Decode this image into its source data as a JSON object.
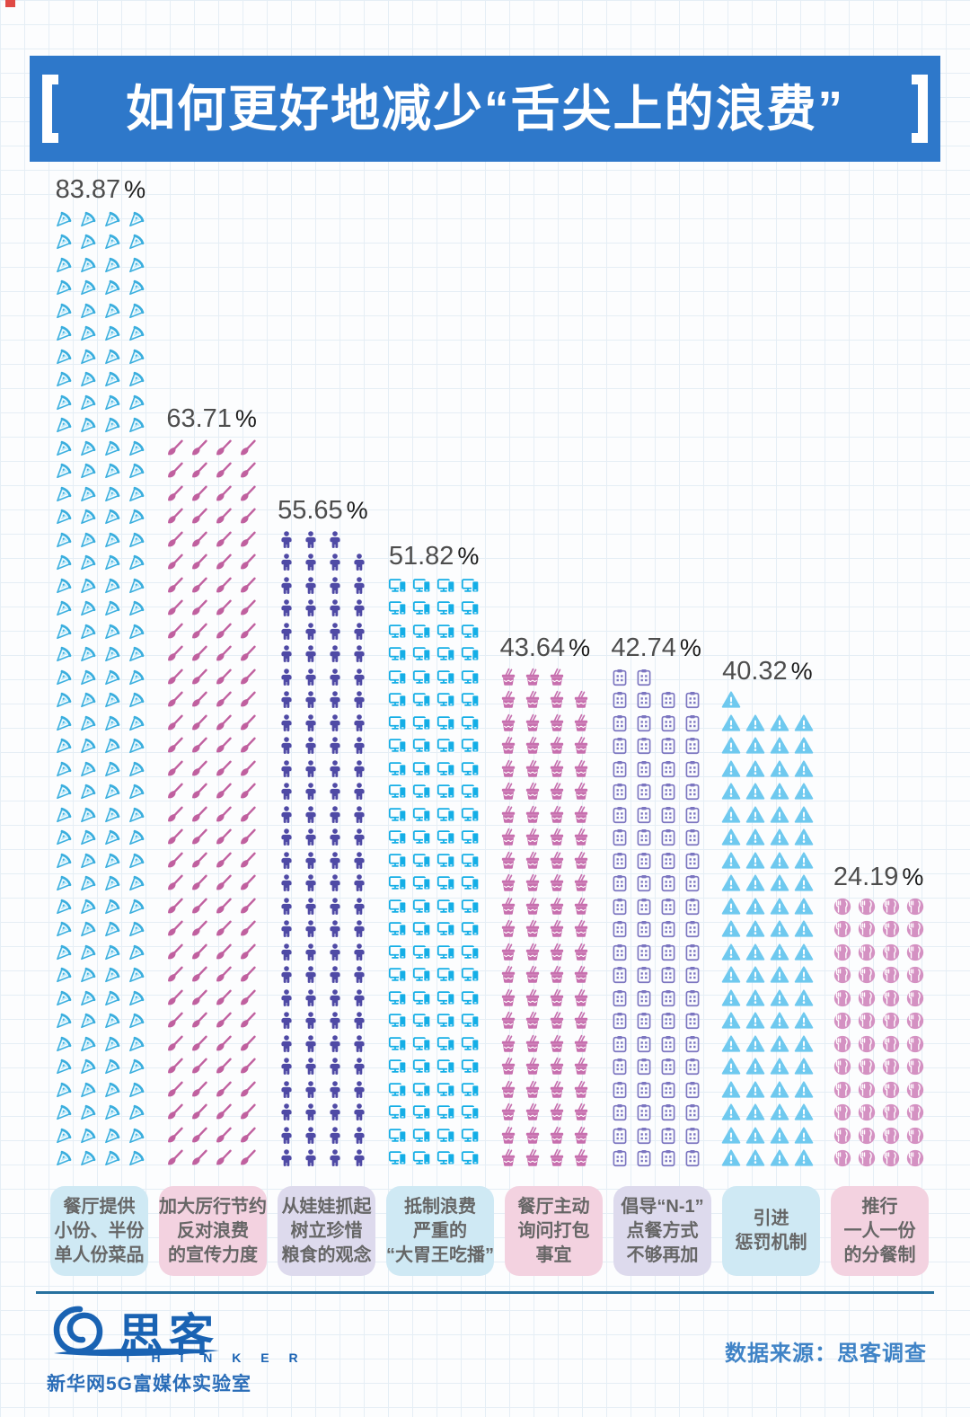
{
  "chart_data": {
    "type": "bar",
    "subtype": "pictogram",
    "title": "如何更好地减少“舌尖上的浪费”",
    "unit": "%",
    "ylim": [
      0,
      100
    ],
    "legend": "none",
    "grid": "graph-paper background",
    "values": [
      83.87,
      63.71,
      55.65,
      51.82,
      43.64,
      42.74,
      40.32,
      24.19
    ],
    "categories": [
      {
        "label": "餐厅提供小份、半份单人份菜品",
        "label_lines": [
          "餐厅提供",
          "小份、半份",
          "单人份菜品"
        ],
        "value": 83.87,
        "display_value": "83.87",
        "icon": "pizza-slice-icon",
        "icon_count": 168,
        "color": "#3aaede",
        "color_light": "#b9e7f8",
        "pill_color": "#cfe9f4"
      },
      {
        "label": "加大厉行节约反对浪费的宣传力度",
        "label_lines": [
          "加大厉行节约",
          "反对浪费",
          "的宣传力度"
        ],
        "value": 63.71,
        "display_value": "63.71",
        "icon": "paint-brush-icon",
        "icon_count": 128,
        "color": "#c0609f",
        "color_light": "#e9c2da",
        "pill_color": "#f3d2e0"
      },
      {
        "label": "从娃娃抓起树立珍惜粮食的观念",
        "label_lines": [
          "从娃娃抓起",
          "树立珍惜",
          "粮食的观念"
        ],
        "value": 55.65,
        "display_value": "55.65",
        "icon": "child-figure-icon",
        "icon_count": 111,
        "color": "#4f4aa5",
        "color_light": "#c5c3e2",
        "pill_color": "#dddaed"
      },
      {
        "label": "抵制浪费严重的“大胃王吃播”",
        "label_lines": [
          "抵制浪费",
          "严重的",
          "“大胃王吃播”"
        ],
        "value": 51.82,
        "display_value": "51.82",
        "icon": "tv-phone-icon",
        "icon_count": 104,
        "color": "#14aee6",
        "color_light": "#b3e6f8",
        "pill_color": "#cfe9f4"
      },
      {
        "label": "餐厅主动询问打包事宜",
        "label_lines": [
          "餐厅主动",
          "询问打包",
          "事宜"
        ],
        "value": 43.64,
        "display_value": "43.64",
        "icon": "takeout-box-icon",
        "icon_count": 87,
        "color": "#c76fae",
        "color_light": "#ecc9e0",
        "pill_color": "#f3d2e0"
      },
      {
        "label": "倡导“N-1”点餐方式不够再加",
        "label_lines": [
          "倡导“N-1”",
          "点餐方式",
          "不够再加"
        ],
        "value": 42.74,
        "display_value": "42.74",
        "icon": "menu-clipboard-icon",
        "icon_count": 86,
        "color": "#7b75c0",
        "color_light": "#d5d2ec",
        "pill_color": "#dddaed"
      },
      {
        "label": "引进惩罚机制",
        "label_lines": [
          "引进",
          "惩罚机制"
        ],
        "value": 40.32,
        "display_value": "40.32",
        "icon": "warning-triangle-icon",
        "icon_count": 81,
        "color": "#6fc9ef",
        "color_light": "#cdecfa",
        "pill_color": "#cfe9f4"
      },
      {
        "label": "推行一人一份的分餐制",
        "label_lines": [
          "推行",
          "一人一份",
          "的分餐制"
        ],
        "value": 24.19,
        "display_value": "24.19",
        "icon": "plate-cutlery-icon",
        "icon_count": 48,
        "color": "#d491c2",
        "color_light": "#f0d4e8",
        "pill_color": "#f3d2e0"
      }
    ]
  },
  "footer": {
    "logo_cn": "思客",
    "logo_en": "T H I N K E R",
    "logo_sub": "新华网5G富媒体实验室",
    "source": "数据来源：思客调查"
  },
  "theme": {
    "title_bg": "#2e78ca",
    "title_color": "#ffffff",
    "value_color": "#4d4d4d",
    "divider_color": "#27719f",
    "logo_color": "#1a63b3",
    "source_color": "#3f83c6"
  }
}
